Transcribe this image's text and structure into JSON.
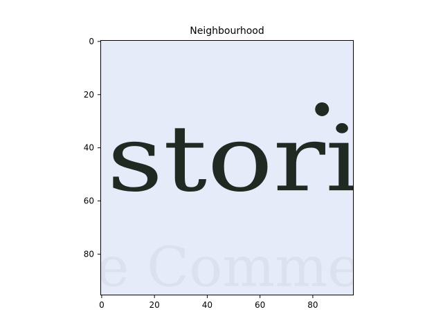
{
  "chart_data": {
    "type": "image",
    "title": "Neighbourhood",
    "image_text": "stori",
    "faded_text": "e Comme",
    "xlabel": "",
    "ylabel": "",
    "xlim": [
      -0.5,
      95.5
    ],
    "ylim": [
      95.5,
      -0.5
    ],
    "xticks": [
      0,
      20,
      40,
      60,
      80
    ],
    "yticks": [
      0,
      20,
      40,
      60,
      80
    ],
    "grid": false,
    "colors": {
      "background": "#e6ebfa",
      "text": "#1f2a22",
      "faded_text": "#d7dde8",
      "dot": "#1f2a22"
    }
  }
}
